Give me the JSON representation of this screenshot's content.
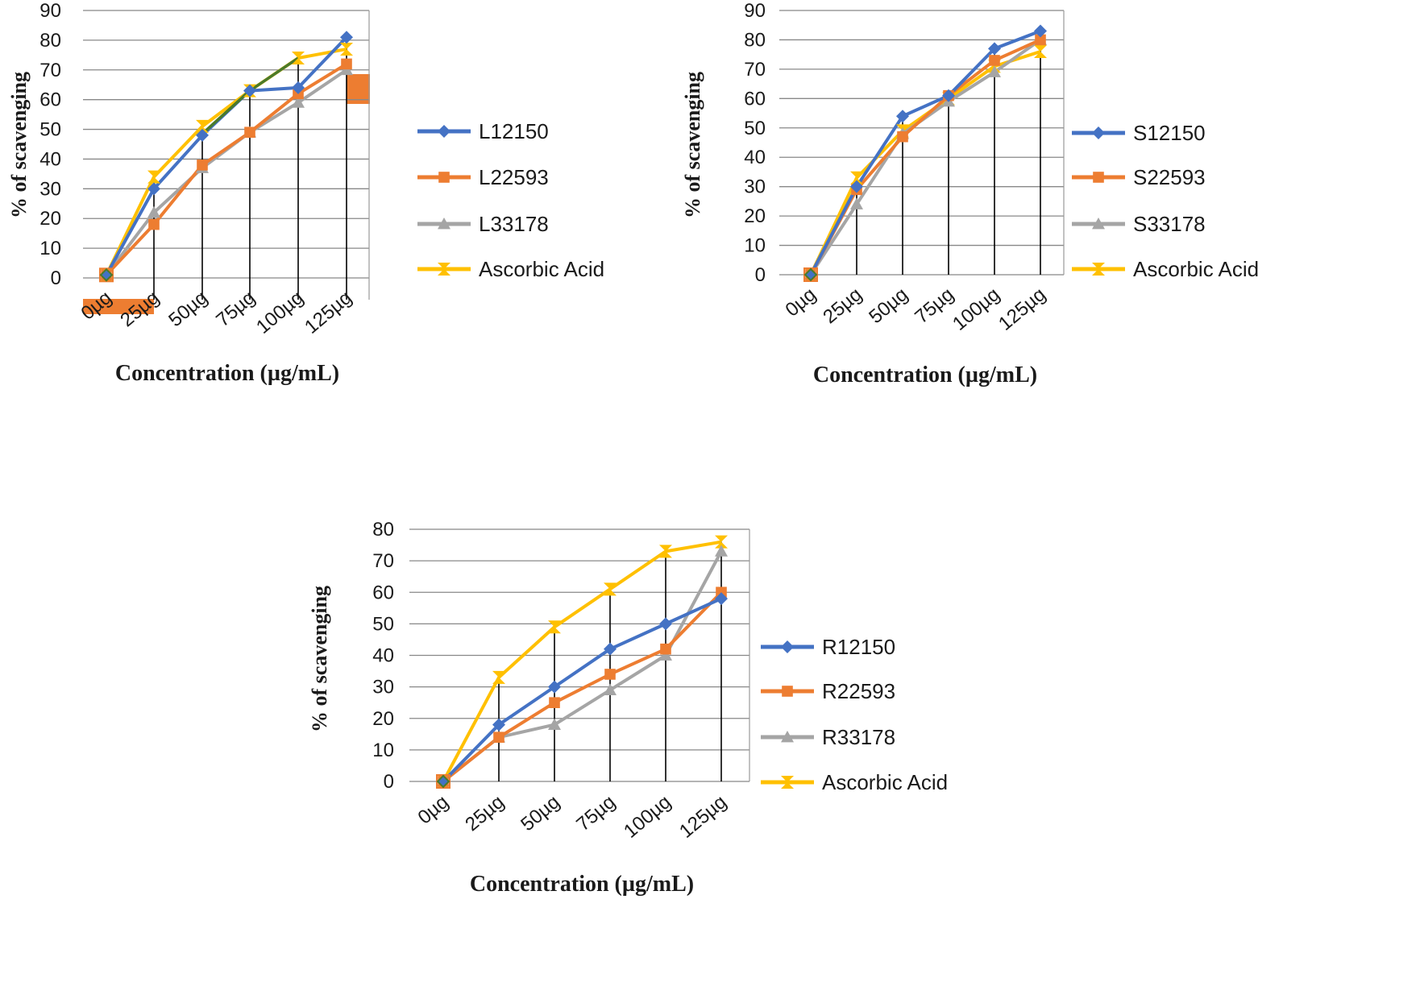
{
  "colors": {
    "blue": "#4472C4",
    "orange": "#ED7D31",
    "gray": "#A5A5A5",
    "yellow": "#FFC000",
    "grid": "#888888",
    "axis": "#999999"
  },
  "chart_data": [
    {
      "type": "line",
      "title": "",
      "xlabel": "Concentration (µg/mL)",
      "ylabel": "% of scavenging",
      "ylim": [
        0,
        90
      ],
      "yticks": [
        0,
        10,
        20,
        30,
        40,
        50,
        60,
        70,
        80,
        90
      ],
      "categories": [
        "0µg",
        "25µg",
        "50µg",
        "75µg",
        "100µg",
        "125µg"
      ],
      "legend_position": "right",
      "series": [
        {
          "name": "L12150",
          "values": [
            1,
            30,
            48,
            63,
            64,
            81
          ],
          "color": "#4472C4",
          "marker": "diamond"
        },
        {
          "name": "L22593",
          "values": [
            1,
            18,
            38,
            49,
            62,
            72
          ],
          "color": "#ED7D31",
          "marker": "square"
        },
        {
          "name": "L33178",
          "values": [
            1,
            22,
            37,
            49,
            59,
            70
          ],
          "color": "#A5A5A5",
          "marker": "triangle"
        },
        {
          "name": "Ascorbic Acid",
          "values": [
            1,
            34,
            51,
            63,
            74,
            77
          ],
          "color": "#FFC000",
          "marker": "hourglass"
        }
      ]
    },
    {
      "type": "line",
      "title": "",
      "xlabel": "Concentration (µg/mL)",
      "ylabel": "% of scavenging",
      "ylim": [
        0,
        90
      ],
      "yticks": [
        0,
        10,
        20,
        30,
        40,
        50,
        60,
        70,
        80,
        90
      ],
      "categories": [
        "0µg",
        "25µg",
        "50µg",
        "75µg",
        "100µg",
        "125µg"
      ],
      "legend_position": "right",
      "series": [
        {
          "name": "S12150",
          "values": [
            0,
            30,
            54,
            61,
            77,
            83
          ],
          "color": "#4472C4",
          "marker": "diamond"
        },
        {
          "name": "S22593",
          "values": [
            0,
            29,
            47,
            61,
            73,
            80
          ],
          "color": "#ED7D31",
          "marker": "square"
        },
        {
          "name": "S33178",
          "values": [
            0,
            24,
            48,
            59,
            69,
            80
          ],
          "color": "#A5A5A5",
          "marker": "triangle"
        },
        {
          "name": "Ascorbic Acid",
          "values": [
            0,
            33,
            49,
            60,
            71,
            76
          ],
          "color": "#FFC000",
          "marker": "hourglass"
        }
      ]
    },
    {
      "type": "line",
      "title": "",
      "xlabel": "Concentration (µg/mL)",
      "ylabel": "% of scavenging",
      "ylim": [
        0,
        80
      ],
      "yticks": [
        0,
        10,
        20,
        30,
        40,
        50,
        60,
        70,
        80
      ],
      "categories": [
        "0µg",
        "25µg",
        "50µg",
        "75µg",
        "100µg",
        "125µg"
      ],
      "legend_position": "right",
      "series": [
        {
          "name": "R12150",
          "values": [
            0,
            18,
            30,
            42,
            50,
            58
          ],
          "color": "#4472C4",
          "marker": "diamond"
        },
        {
          "name": "R22593",
          "values": [
            0,
            14,
            25,
            34,
            42,
            60
          ],
          "color": "#ED7D31",
          "marker": "square"
        },
        {
          "name": "R33178",
          "values": [
            0,
            14,
            18,
            29,
            40,
            73
          ],
          "color": "#A5A5A5",
          "marker": "triangle"
        },
        {
          "name": "Ascorbic Acid",
          "values": [
            0,
            33,
            49,
            61,
            73,
            76
          ],
          "color": "#FFC000",
          "marker": "hourglass"
        }
      ]
    }
  ]
}
